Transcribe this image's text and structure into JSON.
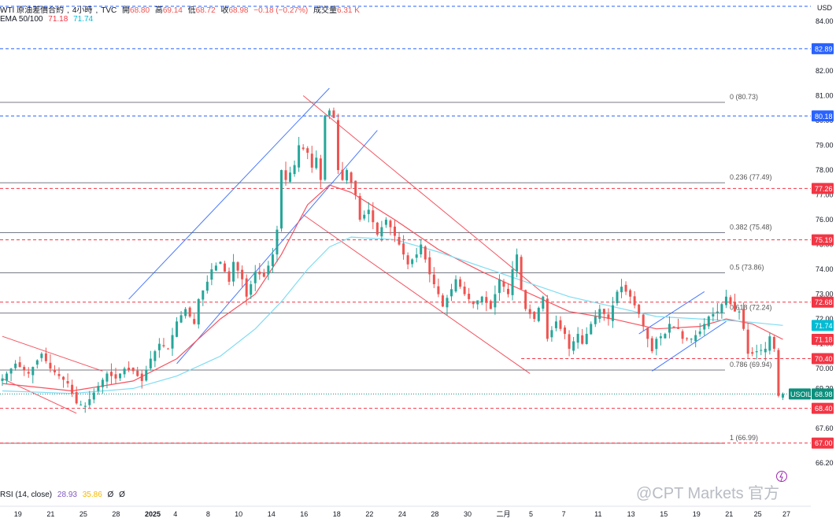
{
  "header": {
    "symbol": "WTI 原油差價合約",
    "interval": "4小時",
    "source": "TVC",
    "open_label": "開",
    "open": "68.80",
    "high_label": "高",
    "high": "69.14",
    "low_label": "低",
    "low": "68.72",
    "close_label": "收",
    "close": "68.98",
    "change": "−0.18 (−0.27%)",
    "volume_label": "成交量",
    "volume": "6.31 K",
    "ema_label": "EMA 50/100",
    "ema50": "71.18",
    "ema100": "71.74"
  },
  "currency_label": "USD",
  "rsi": {
    "label": "RSI (14, close)",
    "value": "28.93",
    "ma": "35.86",
    "v3": "Ø",
    "v4": "Ø"
  },
  "watermark": "@CPT Markets 官方",
  "colors": {
    "up": "#26a69a",
    "down": "#ef5350",
    "blue_line": "#2962ff",
    "red_line": "#f23645",
    "ema50": "#f7525f",
    "ema100": "#7fdcf2",
    "fib": "#787b86",
    "price_badge": "#0c8f7c"
  },
  "chart_data": {
    "type": "candlestick",
    "title": "WTI 原油差價合約, 4小時, TVC",
    "ylim": [
      65.5,
      84.6
    ],
    "x_ticks": [
      "19",
      "21",
      "25",
      "28",
      "2025",
      "4",
      "8",
      "10",
      "14",
      "16",
      "18",
      "22",
      "24",
      "28",
      "30",
      "二月",
      "5",
      "7",
      "11",
      "13",
      "15",
      "19",
      "21",
      "25",
      "27"
    ],
    "y_ticks": [
      "66.20",
      "67.60",
      "69.20",
      "70.00",
      "71.00",
      "72.00",
      "73.00",
      "74.00",
      "75.00",
      "76.00",
      "77.00",
      "78.00",
      "79.00",
      "80.00",
      "81.00",
      "82.00",
      "83.00",
      "84.00"
    ],
    "fib_levels": [
      {
        "label": "0 (80.73)",
        "value": 80.73
      },
      {
        "label": "0.236 (77.49)",
        "value": 77.49
      },
      {
        "label": "0.382 (75.48)",
        "value": 75.48
      },
      {
        "label": "0.5 (73.86)",
        "value": 73.86
      },
      {
        "label": "0.618 (72.24)",
        "value": 72.24
      },
      {
        "label": "0.786 (69.94)",
        "value": 69.94
      },
      {
        "label": "1 (66.99)",
        "value": 66.99
      }
    ],
    "price_lines": [
      {
        "label": "82.89",
        "value": 82.89,
        "color": "#2962ff",
        "style": "dashed-blue"
      },
      {
        "label": "80.18",
        "value": 80.18,
        "color": "#2962ff",
        "style": "dashed-blue"
      },
      {
        "label": "77.26",
        "value": 77.26,
        "color": "#f23645",
        "style": "dashed-red"
      },
      {
        "label": "75.19",
        "value": 75.19,
        "color": "#f23645",
        "style": "dashed-red"
      },
      {
        "label": "72.68",
        "value": 72.68,
        "color": "#f23645",
        "style": "dashed-red"
      },
      {
        "label": "70.40",
        "value": 70.4,
        "color": "#f23645",
        "style": "dashed-red"
      },
      {
        "label": "68.40",
        "value": 68.4,
        "color": "#f23645",
        "style": "dashed-red"
      },
      {
        "label": "67.00",
        "value": 67.0,
        "color": "#f23645",
        "style": "dashed-red"
      }
    ],
    "ema_badges": [
      {
        "label": "71.74",
        "value": 71.74,
        "color": "#00bcd4"
      },
      {
        "label": "71.18",
        "value": 71.18,
        "color": "#f23645"
      }
    ],
    "last_price": {
      "symbol": "USOIL",
      "label": "68.98",
      "value": 68.98
    },
    "top_dashed_level": 84.6,
    "close_path": [
      [
        0,
        69.6
      ],
      [
        3,
        70.2
      ],
      [
        6,
        69.8
      ],
      [
        9,
        70.6
      ],
      [
        11,
        70.0
      ],
      [
        13,
        69.7
      ],
      [
        15,
        69.4
      ],
      [
        17,
        68.6
      ],
      [
        19,
        68.5
      ],
      [
        22,
        69.3
      ],
      [
        24,
        69.8
      ],
      [
        26,
        69.6
      ],
      [
        28,
        70.0
      ],
      [
        30,
        69.9
      ],
      [
        32,
        69.5
      ],
      [
        34,
        70.4
      ],
      [
        36,
        71.0
      ],
      [
        38,
        70.8
      ],
      [
        40,
        71.9
      ],
      [
        42,
        72.4
      ],
      [
        44,
        71.8
      ],
      [
        45,
        72.8
      ],
      [
        47,
        73.5
      ],
      [
        48,
        74.0
      ],
      [
        50,
        74.3
      ],
      [
        52,
        73.5
      ],
      [
        53,
        74.3
      ],
      [
        55,
        73.6
      ],
      [
        56,
        72.9
      ],
      [
        57,
        73.4
      ],
      [
        58,
        73.9
      ],
      [
        60,
        73.7
      ],
      [
        62,
        74.6
      ],
      [
        63,
        75.6
      ],
      [
        64,
        78.0
      ],
      [
        65,
        77.6
      ],
      [
        67,
        78.2
      ],
      [
        68,
        79.0
      ],
      [
        70,
        78.7
      ],
      [
        71,
        78.1
      ],
      [
        72,
        78.5
      ],
      [
        73,
        77.6
      ],
      [
        74,
        80.2
      ],
      [
        75,
        80.4
      ],
      [
        76,
        80.1
      ],
      [
        77,
        78.0
      ],
      [
        78,
        77.6
      ],
      [
        79,
        78.0
      ],
      [
        80,
        77.5
      ],
      [
        81,
        77.0
      ],
      [
        82,
        76.0
      ],
      [
        84,
        76.4
      ],
      [
        86,
        75.4
      ],
      [
        88,
        76.0
      ],
      [
        89,
        75.7
      ],
      [
        91,
        75.0
      ],
      [
        93,
        74.2
      ],
      [
        95,
        74.6
      ],
      [
        96,
        75.0
      ],
      [
        98,
        73.8
      ],
      [
        100,
        73.0
      ],
      [
        101,
        72.5
      ],
      [
        103,
        73.2
      ],
      [
        104,
        73.6
      ],
      [
        106,
        73.0
      ],
      [
        108,
        72.6
      ],
      [
        110,
        72.9
      ],
      [
        112,
        72.4
      ],
      [
        114,
        73.6
      ],
      [
        116,
        73.0
      ],
      [
        117,
        74.0
      ],
      [
        118,
        74.6
      ],
      [
        119,
        73.2
      ],
      [
        120,
        72.4
      ],
      [
        122,
        72.0
      ],
      [
        124,
        72.9
      ],
      [
        125,
        71.2
      ],
      [
        127,
        71.9
      ],
      [
        128,
        71.6
      ],
      [
        129,
        71.4
      ],
      [
        130,
        70.8
      ],
      [
        132,
        71.4
      ],
      [
        133,
        71.0
      ],
      [
        135,
        71.8
      ],
      [
        137,
        72.4
      ],
      [
        139,
        72.0
      ],
      [
        141,
        73.1
      ],
      [
        142,
        73.3
      ],
      [
        144,
        72.9
      ],
      [
        146,
        72.2
      ],
      [
        148,
        71.2
      ],
      [
        149,
        70.7
      ],
      [
        150,
        71.2
      ],
      [
        152,
        71.4
      ],
      [
        153,
        71.8
      ],
      [
        155,
        71.6
      ],
      [
        156,
        71.2
      ],
      [
        158,
        71.2
      ],
      [
        160,
        71.5
      ],
      [
        162,
        72.1
      ],
      [
        164,
        72.3
      ],
      [
        166,
        72.9
      ],
      [
        167,
        72.6
      ],
      [
        168,
        72.3
      ],
      [
        169,
        72.3
      ],
      [
        170,
        71.6
      ],
      [
        171,
        70.6
      ],
      [
        172,
        70.6
      ],
      [
        173,
        70.7
      ],
      [
        175,
        70.8
      ],
      [
        176,
        71.3
      ],
      [
        177,
        70.8
      ],
      [
        178,
        68.9
      ],
      [
        179,
        68.98
      ]
    ],
    "ema50_path": [
      [
        0,
        69.4
      ],
      [
        16,
        69.1
      ],
      [
        30,
        69.5
      ],
      [
        40,
        70.4
      ],
      [
        50,
        72.0
      ],
      [
        58,
        73.0
      ],
      [
        64,
        74.6
      ],
      [
        70,
        76.6
      ],
      [
        75,
        77.4
      ],
      [
        80,
        77.1
      ],
      [
        90,
        76.0
      ],
      [
        100,
        74.8
      ],
      [
        110,
        73.9
      ],
      [
        120,
        73.1
      ],
      [
        130,
        72.3
      ],
      [
        140,
        72.0
      ],
      [
        150,
        71.6
      ],
      [
        160,
        71.7
      ],
      [
        166,
        72.0
      ],
      [
        172,
        71.8
      ],
      [
        179,
        71.18
      ]
    ],
    "ema100_path": [
      [
        0,
        69.1
      ],
      [
        16,
        69.0
      ],
      [
        30,
        69.2
      ],
      [
        40,
        69.7
      ],
      [
        50,
        70.5
      ],
      [
        58,
        71.6
      ],
      [
        64,
        72.7
      ],
      [
        70,
        74.0
      ],
      [
        75,
        74.9
      ],
      [
        80,
        75.3
      ],
      [
        90,
        75.2
      ],
      [
        100,
        74.7
      ],
      [
        110,
        74.1
      ],
      [
        120,
        73.5
      ],
      [
        130,
        72.9
      ],
      [
        140,
        72.5
      ],
      [
        150,
        72.1
      ],
      [
        160,
        72.0
      ],
      [
        170,
        71.9
      ],
      [
        179,
        71.74
      ]
    ],
    "trendlines": [
      {
        "color": "blue",
        "from": [
          29,
          72.8
        ],
        "to": [
          75,
          81.3
        ]
      },
      {
        "color": "blue",
        "from": [
          40,
          70.2
        ],
        "to": [
          86,
          79.6
        ]
      },
      {
        "color": "red",
        "from": [
          69,
          76.2
        ],
        "to": [
          121,
          69.8
        ]
      },
      {
        "color": "red",
        "from": [
          69,
          81.0
        ],
        "to": [
          125,
          72.9
        ]
      },
      {
        "color": "red",
        "from": [
          0,
          71.3
        ],
        "to": [
          23,
          69.9
        ]
      },
      {
        "color": "red",
        "from": [
          0,
          69.6
        ],
        "to": [
          17,
          68.2
        ]
      },
      {
        "color": "blue",
        "from": [
          149,
          69.9
        ],
        "to": [
          166,
          71.9
        ]
      },
      {
        "color": "blue",
        "from": [
          146,
          71.4
        ],
        "to": [
          161,
          73.1
        ]
      }
    ],
    "support_segments": [
      {
        "from": 119,
        "to": 180,
        "value": 70.4
      }
    ]
  }
}
